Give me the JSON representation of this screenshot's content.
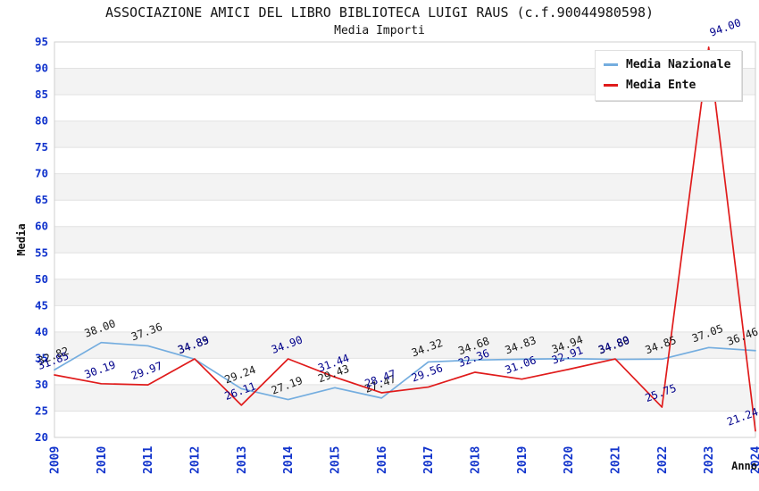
{
  "title": "ASSOCIAZIONE AMICI DEL LIBRO BIBLIOTECA LUIGI RAUS (c.f.90044980598)",
  "subtitle": "Media Importi",
  "axes": {
    "y_label": "Media",
    "x_label": "Anno",
    "y_ticks": [
      95,
      90,
      85,
      80,
      75,
      70,
      65,
      60,
      55,
      50,
      45,
      40,
      35,
      30,
      25,
      20
    ],
    "tick_color": "#1133cc",
    "band_color": "#f3f3f3",
    "gridline_color": "#e2e2e2",
    "border_color": "#cfcfcf"
  },
  "legend": {
    "position": "top-right",
    "items": [
      "Media Nazionale",
      "Media Ente"
    ]
  },
  "chart_data": {
    "type": "line",
    "title": "ASSOCIAZIONE AMICI DEL LIBRO BIBLIOTECA LUIGI RAUS (c.f.90044980598)",
    "subtitle": "Media Importi",
    "xlabel": "Anno",
    "ylabel": "Media",
    "ylim": [
      20,
      95
    ],
    "grid": "horizontal-bands",
    "legend_position": "top-right",
    "label_format": "two-decimals",
    "x": [
      "2009",
      "2010",
      "2011",
      "2012",
      "2013",
      "2014",
      "2015",
      "2016",
      "2017",
      "2018",
      "2019",
      "2020",
      "2021",
      "2022",
      "2023",
      "2024"
    ],
    "series": [
      {
        "name": "Media Nazionale",
        "color": "#74ADDF",
        "label_color": "#1a1a1a",
        "values": [
          32.82,
          38.0,
          37.36,
          34.85,
          29.24,
          27.19,
          29.43,
          27.47,
          34.32,
          34.68,
          34.83,
          34.94,
          34.8,
          34.85,
          37.05,
          36.46
        ]
      },
      {
        "name": "Media Ente",
        "color": "#e01b1b",
        "label_color": "#00008b",
        "values": [
          31.85,
          30.19,
          29.97,
          34.89,
          26.11,
          34.9,
          31.44,
          28.47,
          29.56,
          32.36,
          31.06,
          32.91,
          34.89,
          25.75,
          94.0,
          21.24
        ]
      }
    ]
  }
}
